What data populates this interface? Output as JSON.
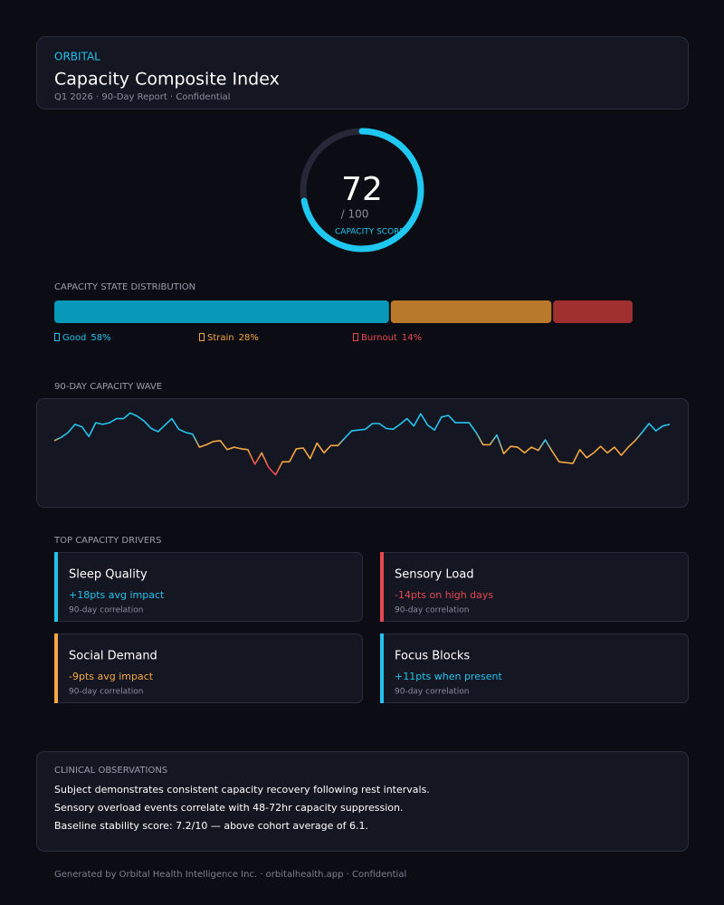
{
  "header": {
    "brand": "ORBITAL",
    "title": "Capacity Composite Index",
    "subtitle": "Q1 2026 · 90-Day Report · Confidential"
  },
  "gauge": {
    "value": 72,
    "max": 100,
    "max_label": "/ 100",
    "label": "CAPACITY SCORE",
    "color": "#1ec8f0"
  },
  "distribution": {
    "type": "stacked-bar",
    "title": "CAPACITY STATE DISTRIBUTION",
    "series": [
      {
        "name": "Good",
        "values": [
          58
        ],
        "value_labels": [
          "58%"
        ],
        "color": "#0898b8",
        "label_color": "#22c4ee"
      },
      {
        "name": "Strain",
        "values": [
          28
        ],
        "value_labels": [
          "28%"
        ],
        "color": "#b87a2a",
        "label_color": "#f5a742"
      },
      {
        "name": "Burnout",
        "values": [
          14
        ],
        "value_labels": [
          "14%"
        ],
        "color": "#a03030",
        "label_color": "#e84850"
      }
    ]
  },
  "chart_data": {
    "type": "line",
    "title": "90-DAY CAPACITY WAVE",
    "ylim": [
      0,
      100
    ],
    "values": [
      59,
      63,
      69,
      79,
      76,
      64,
      81,
      79,
      81,
      86,
      86,
      93,
      89,
      83,
      74,
      70,
      78,
      86,
      73,
      69,
      67,
      51,
      54,
      58,
      59,
      48,
      51,
      49,
      48,
      30,
      44,
      26,
      17,
      33,
      33,
      49,
      50,
      37,
      56,
      44,
      53,
      53,
      62,
      71,
      72,
      73,
      80,
      80,
      74,
      73,
      79,
      86,
      77,
      92,
      78,
      72,
      88,
      90,
      81,
      81,
      81,
      69,
      54,
      54,
      66,
      43,
      52,
      51,
      44,
      51,
      47,
      60,
      46,
      33,
      32,
      31,
      48,
      38,
      44,
      52,
      44,
      51,
      41,
      51,
      59,
      69,
      80,
      71,
      77,
      79
    ],
    "levels": [
      {
        "min": 60,
        "color": "#22c4ee"
      },
      {
        "min": 31,
        "color": "#f5a742"
      },
      {
        "min": 0,
        "color": "#e84850"
      }
    ]
  },
  "drivers": {
    "title": "TOP CAPACITY DRIVERS",
    "items": [
      {
        "name": "Sleep Quality",
        "impact": "+18pts avg impact",
        "note": "90-day correlation",
        "color": "#22c4ee"
      },
      {
        "name": "Sensory Load",
        "impact": "-14pts on high days",
        "note": "90-day correlation",
        "color": "#e84850"
      },
      {
        "name": "Social Demand",
        "impact": "-9pts avg impact",
        "note": "90-day correlation",
        "color": "#f5a742"
      },
      {
        "name": "Focus Blocks",
        "impact": "+11pts when present",
        "note": "90-day correlation",
        "color": "#22c4ee"
      }
    ]
  },
  "observations": {
    "title": "CLINICAL OBSERVATIONS",
    "lines": [
      "Subject demonstrates consistent capacity recovery following rest intervals.",
      "Sensory overload events correlate with 48-72hr capacity suppression.",
      "Baseline stability score: 7.2/10 — above cohort average of 6.1."
    ]
  },
  "footer": "Generated by Orbital Health Intelligence Inc. · orbitalhealth.app · Confidential"
}
